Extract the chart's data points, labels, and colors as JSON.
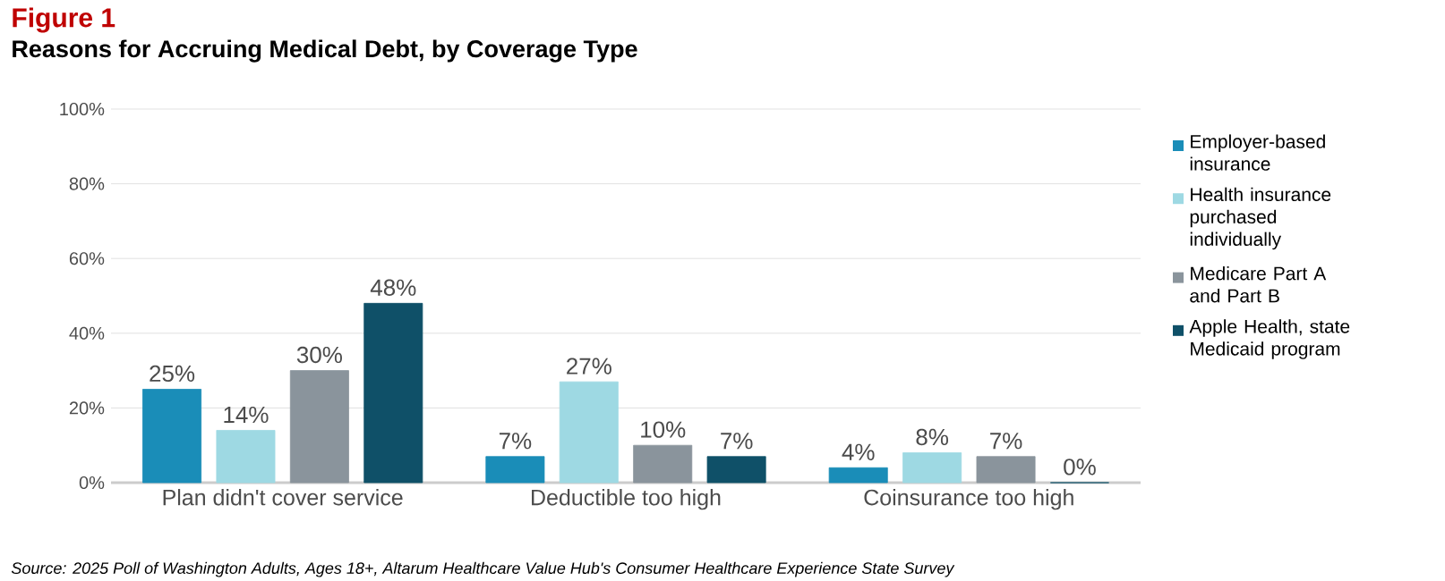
{
  "chart_data": {
    "type": "bar",
    "title": "Figure 1",
    "subtitle": "Reasons for Accruing Medical Debt, by Coverage Type",
    "categories": [
      "Plan didn't cover service",
      "Deductible too high",
      "Coinsurance too high"
    ],
    "series": [
      {
        "name": "Employer-based insurance",
        "color": "#1a8db8",
        "values": [
          25,
          7,
          4
        ],
        "value_labels": [
          "25%",
          "7%",
          "4%"
        ]
      },
      {
        "name": "Health insurance purchased individually",
        "color": "#9ed9e3",
        "values": [
          14,
          27,
          8
        ],
        "value_labels": [
          "14%",
          "27%",
          "8%"
        ]
      },
      {
        "name": "Medicare Part A and Part B",
        "color": "#8a949c",
        "values": [
          30,
          10,
          7
        ],
        "value_labels": [
          "30%",
          "10%",
          "7%"
        ]
      },
      {
        "name": "Apple Health, state Medicaid program",
        "color": "#0f5068",
        "values": [
          48,
          7,
          0
        ],
        "value_labels": [
          "48%",
          "7%",
          "0%"
        ]
      }
    ],
    "ylim": [
      0,
      100
    ],
    "yticks": [
      {
        "value": 0,
        "label": "0%"
      },
      {
        "value": 20,
        "label": "20%"
      },
      {
        "value": 40,
        "label": "40%"
      },
      {
        "value": 60,
        "label": "60%"
      },
      {
        "value": 80,
        "label": "80%"
      },
      {
        "value": 100,
        "label": "100%"
      }
    ],
    "grid": "y",
    "legend": "right",
    "annotations": [
      "Source: 2025 Poll of Washington Adults, Ages 18+, Altarum Healthcare Value Hub's Consumer Healthcare Experience State Survey"
    ]
  }
}
